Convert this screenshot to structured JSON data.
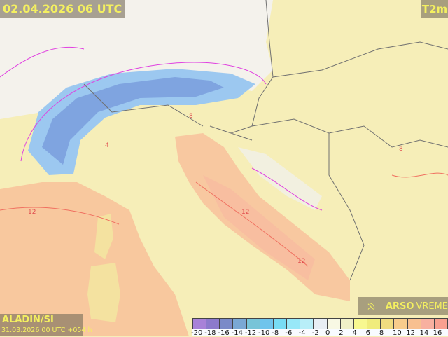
{
  "header": {
    "valid_time": "02.04.2026 06 UTC",
    "parameter": "T2m"
  },
  "footer": {
    "model": "ALADIN/SI",
    "run_info": "31.03.2026 00 UTC +054 h"
  },
  "logo": {
    "brand": "ARSO",
    "product": "VREME",
    "icon": "satellite-dish-icon"
  },
  "colorbar": {
    "labels": [
      "-20",
      "-18",
      "-16",
      "-14",
      "-12",
      "-10",
      "-8",
      "-6",
      "-4",
      "-2",
      "0",
      "2",
      "4",
      "6",
      "8",
      "10",
      "12",
      "14",
      "16"
    ],
    "colors": [
      "#a882d8",
      "#8c7acc",
      "#7a8ac8",
      "#7aa8d4",
      "#78c4d8",
      "#70c4ec",
      "#78dcf4",
      "#98e8f8",
      "#b8eef8",
      "#e8eef4",
      "#f8f8e4",
      "#f0f0c8",
      "#f8f890",
      "#f0ec7c",
      "#f0dc80",
      "#f8cc8c",
      "#f8c090",
      "#f8b0a0",
      "#f8a090"
    ]
  },
  "map_labels": [
    "12",
    "12",
    "8",
    "4",
    "8",
    "12"
  ]
}
